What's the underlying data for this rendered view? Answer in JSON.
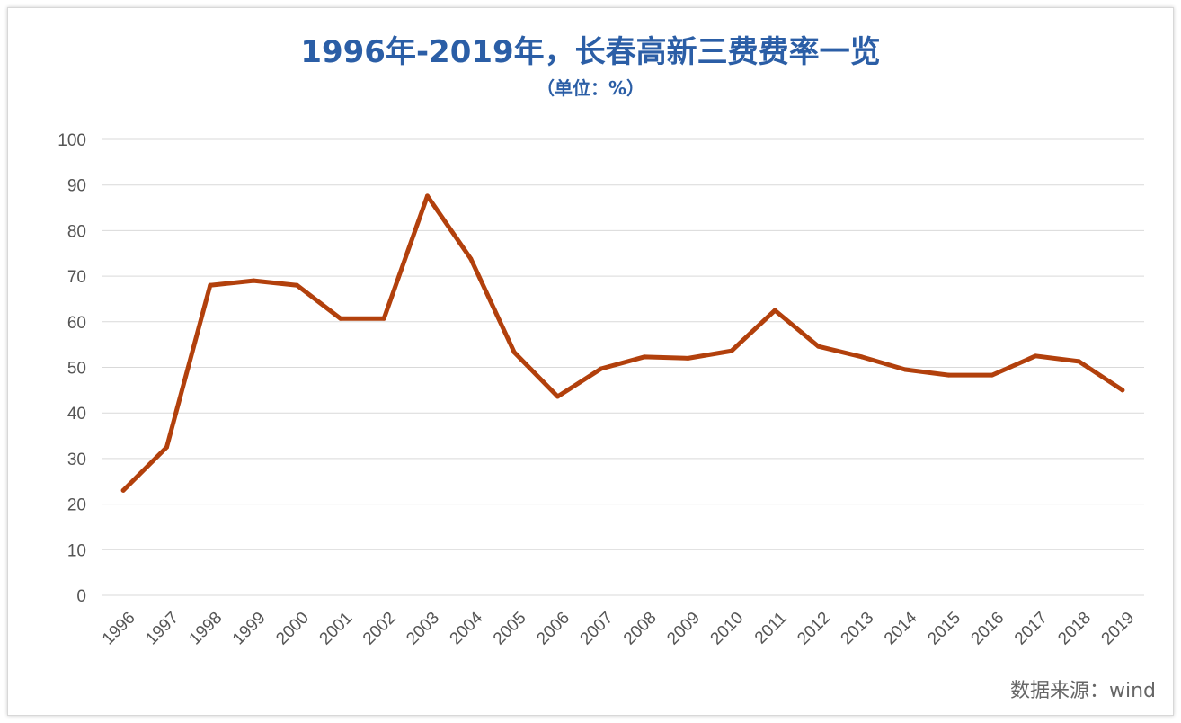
{
  "chart_data": {
    "type": "line",
    "title": "1996年-2019年，长春高新三费费率一览",
    "subtitle": "（单位：%）",
    "xlabel": "",
    "ylabel": "",
    "ylim": [
      0,
      100
    ],
    "yticks": [
      0,
      10,
      20,
      30,
      40,
      50,
      60,
      70,
      80,
      90,
      100
    ],
    "grid": true,
    "categories": [
      "1996",
      "1997",
      "1998",
      "1999",
      "2000",
      "2001",
      "2002",
      "2003",
      "2004",
      "2005",
      "2006",
      "2007",
      "2008",
      "2009",
      "2010",
      "2011",
      "2012",
      "2013",
      "2014",
      "2015",
      "2016",
      "2017",
      "2018",
      "2019"
    ],
    "values": [
      23,
      32.5,
      68,
      69,
      68,
      60.7,
      60.7,
      87.6,
      73.8,
      53.3,
      43.6,
      49.7,
      52.3,
      52,
      53.6,
      62.5,
      54.6,
      52.3,
      49.5,
      48.3,
      48.3,
      52.5,
      51.3,
      45
    ],
    "line_color": "#b2400c",
    "source": "数据来源：wind"
  }
}
